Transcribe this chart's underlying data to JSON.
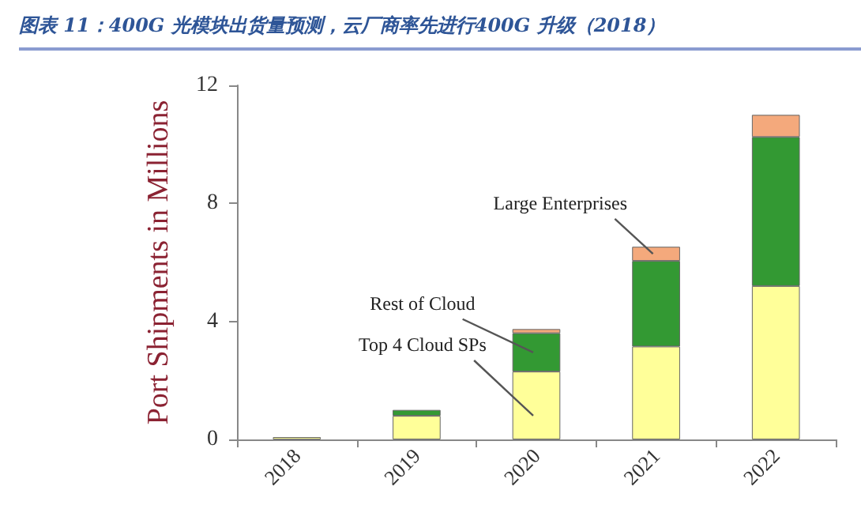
{
  "chart_data": {
    "type": "bar",
    "title": "图表 11：400G 光模块出货量预测，云厂商率先进行400G 升级（2018）",
    "ylabel": "Port Shipments in Millions",
    "categories": [
      "2018",
      "2019",
      "2020",
      "2021",
      "2022"
    ],
    "stacked": true,
    "series": [
      {
        "name": "Top 4 Cloud SPs",
        "color": "#ffff99",
        "values": [
          0.08,
          0.8,
          2.3,
          3.15,
          5.2
        ]
      },
      {
        "name": "Rest of Cloud",
        "color": "#339933",
        "values": [
          null,
          0.2,
          1.3,
          2.9,
          5.05
        ]
      },
      {
        "name": "Large Enterprises",
        "color": "#f4a97c",
        "values": [
          null,
          null,
          0.14,
          0.48,
          0.75
        ]
      }
    ],
    "ylim": [
      0,
      12
    ],
    "yticks": [
      0,
      4,
      8,
      12
    ],
    "grid": false,
    "legend": false
  }
}
